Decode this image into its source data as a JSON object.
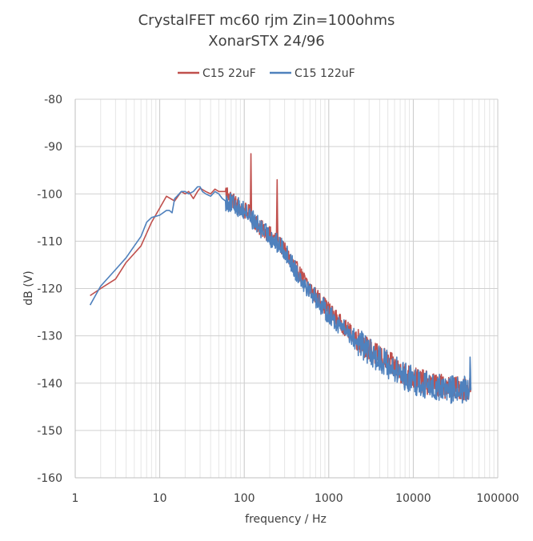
{
  "chart_data": {
    "type": "line",
    "title": "CrystalFET mc60 rjm Zin=100ohms",
    "subtitle": "XonarSTX 24/96",
    "xlabel": "frequency / Hz",
    "ylabel": "dB (V)",
    "x_scale": "log",
    "xlim": [
      1,
      100000
    ],
    "ylim": [
      -160,
      -80
    ],
    "x_ticks": [
      1,
      10,
      100,
      1000,
      10000,
      100000
    ],
    "x_tick_labels": [
      "1",
      "10",
      "100",
      "1000",
      "10000",
      "100000"
    ],
    "y_ticks": [
      -80,
      -90,
      -100,
      -110,
      -120,
      -130,
      -140,
      -150,
      -160
    ],
    "y_tick_labels": [
      "-80",
      "-90",
      "-100",
      "-110",
      "-120",
      "-130",
      "-140",
      "-150",
      "-160"
    ],
    "grid": true,
    "legend_position": "top",
    "series": [
      {
        "name": "C15 22uF",
        "color": "#c0504d",
        "x": [
          1.5,
          2,
          3,
          4,
          6,
          8,
          10,
          12,
          15,
          18,
          20,
          22,
          25,
          28,
          30,
          35,
          40,
          45,
          50,
          55,
          60,
          65,
          70,
          80,
          90,
          100,
          110,
          118,
          120,
          122,
          125,
          150,
          200,
          240,
          245,
          250,
          255,
          260,
          300,
          400,
          500,
          700,
          1000,
          1500,
          2000,
          3000,
          5000,
          7000,
          10000,
          15000,
          20000,
          30000,
          40000,
          48000
        ],
        "y": [
          -121.5,
          -120,
          -118,
          -114.5,
          -111,
          -106,
          -103,
          -100.5,
          -101.5,
          -99.5,
          -100,
          -99.5,
          -101,
          -99.5,
          -98.8,
          -99.5,
          -100,
          -99,
          -99.5,
          -99.5,
          -99.5,
          -100,
          -101,
          -102,
          -103,
          -103.5,
          -104,
          -104,
          -91.5,
          -104.5,
          -105,
          -107,
          -108.5,
          -110,
          -97,
          -110,
          -110,
          -110.5,
          -112,
          -115.5,
          -118,
          -121.5,
          -124.5,
          -128,
          -130,
          -133,
          -135.5,
          -137.5,
          -139,
          -140,
          -140.5,
          -141,
          -141,
          -141
        ],
        "noise_band_dB": 2.5
      },
      {
        "name": "C15 122uF",
        "color": "#4f81bd",
        "x": [
          1.5,
          2,
          3,
          4,
          5,
          6,
          7,
          8,
          10,
          12,
          13,
          14,
          15,
          16,
          18,
          20,
          22,
          25,
          28,
          30,
          32,
          35,
          40,
          45,
          50,
          55,
          60,
          70,
          80,
          90,
          100,
          120,
          150,
          200,
          300,
          400,
          500,
          700,
          1000,
          1500,
          2000,
          3000,
          5000,
          7000,
          10000,
          15000,
          20000,
          30000,
          40000,
          46000,
          47000,
          48000
        ],
        "y": [
          -123.5,
          -119.5,
          -116,
          -113.5,
          -111,
          -109,
          -106,
          -105,
          -104.5,
          -103.5,
          -103.5,
          -104,
          -101,
          -100.5,
          -99.5,
          -99.5,
          -100,
          -99.5,
          -98.5,
          -98.5,
          -99.5,
          -100,
          -100.5,
          -99.5,
          -100,
          -101,
          -101.5,
          -102,
          -102.5,
          -103,
          -103.5,
          -105,
          -107,
          -109,
          -112,
          -116,
          -118.5,
          -122,
          -125.5,
          -128.5,
          -130.5,
          -133.5,
          -136,
          -138,
          -139.5,
          -140.5,
          -141,
          -141.5,
          -141.5,
          -141.5,
          -134.5,
          -141.5
        ],
        "noise_band_dB": 3
      }
    ]
  }
}
